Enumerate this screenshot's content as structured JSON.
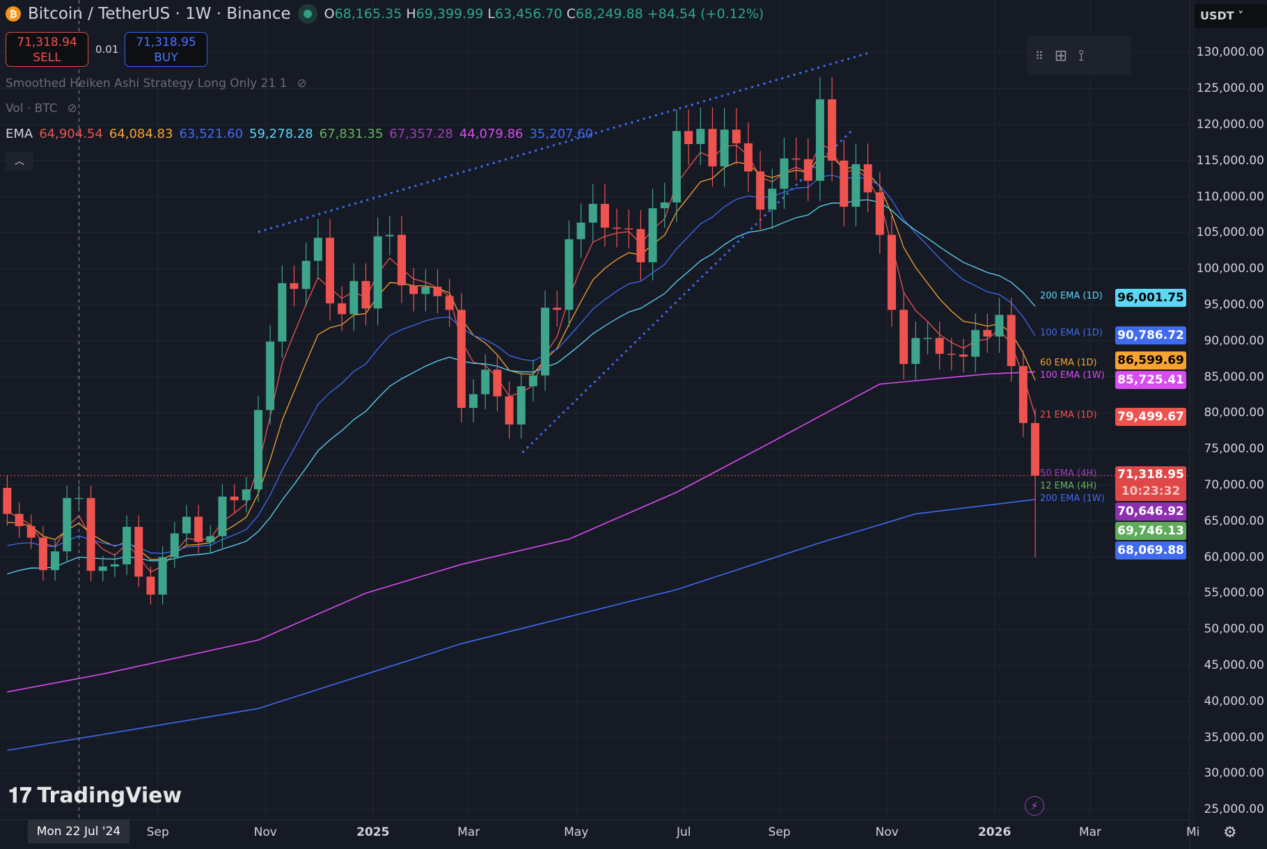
{
  "header": {
    "symbol": "Bitcoin / TetherUS · 1W · Binance",
    "open_label": "O",
    "open": "68,165.35",
    "high_label": "H",
    "high": "69,399.99",
    "low_label": "L",
    "low": "63,456.70",
    "close_label": "C",
    "close": "68,249.88",
    "change": "+84.54 (+0.12%)"
  },
  "trade": {
    "sell_price": "71,318.94",
    "sell_label": "SELL",
    "qty": "0.01",
    "buy_price": "71,318.95",
    "buy_label": "BUY"
  },
  "indicators": {
    "strategy": "Smoothed Heiken Ashi Strategy Long Only 21 1",
    "volume": "Vol · BTC",
    "ema_label": "EMA",
    "ema_values": [
      {
        "v": "64,904.54",
        "c": "#ef5350"
      },
      {
        "v": "64,084.83",
        "c": "#f7a331"
      },
      {
        "v": "63,521.60",
        "c": "#3f6bf0"
      },
      {
        "v": "59,278.28",
        "c": "#5ad8f5"
      },
      {
        "v": "67,831.35",
        "c": "#66b45a"
      },
      {
        "v": "67,357.28",
        "c": "#9c3fb5"
      },
      {
        "v": "44,079.86",
        "c": "#d84cf0"
      },
      {
        "v": "35,207.60",
        "c": "#3f6bf0"
      }
    ]
  },
  "currency": "USDT",
  "price_axis": [
    "130,000.00",
    "125,000.00",
    "120,000.00",
    "115,000.00",
    "110,000.00",
    "105,000.00",
    "100,000.00",
    "95,000.00",
    "90,000.00",
    "85,000.00",
    "80,000.00",
    "75,000.00",
    "70,000.00",
    "65,000.00",
    "60,000.00",
    "55,000.00",
    "50,000.00",
    "45,000.00",
    "40,000.00",
    "35,000.00",
    "30,000.00",
    "25,000.00"
  ],
  "price_labels": [
    {
      "text": "96,001.75",
      "price": 96001.75,
      "bg": "#5ad8f5",
      "fg": "#000"
    },
    {
      "text": "90,786.72",
      "price": 90786.72,
      "bg": "#3f6bf0",
      "fg": "#fff"
    },
    {
      "text": "86,599.69",
      "price": 87300,
      "bg": "#f7a331",
      "fg": "#000"
    },
    {
      "text": "85,725.41",
      "price": 85725.41,
      "bg": "#d84cf0",
      "fg": "#fff"
    },
    {
      "text": "79,499.67",
      "price": 79499.67,
      "bg": "#ef5350",
      "fg": "#fff"
    },
    {
      "text": "70,646.92",
      "price": 68300,
      "bg": "#8e2fb0",
      "fg": "#fff"
    },
    {
      "text": "69,746.13",
      "price": 65800,
      "bg": "#5fab5a",
      "fg": "#fff"
    },
    {
      "text": "68,069.88",
      "price": 63300,
      "bg": "#3f6bf0",
      "fg": "#fff"
    }
  ],
  "last_price": {
    "price_value": 71318.95,
    "price": "71,318.95",
    "countdown": "10:23:32"
  },
  "ema_tags": [
    {
      "text": "200 EMA (1D)",
      "price": 96200,
      "c": "#5ad8f5"
    },
    {
      "text": "100 EMA (1D)",
      "price": 91000,
      "c": "#3f6bf0"
    },
    {
      "text": "60 EMA (1D)",
      "price": 86900,
      "c": "#f7a331"
    },
    {
      "text": "100 EMA (1W)",
      "price": 86000,
      "c": "#d84cf0"
    },
    {
      "text": "21 EMA (1D)",
      "price": 79700,
      "c": "#ef5350"
    },
    {
      "text": "50 EMA (4H)",
      "price": 71500,
      "c": "#9c3fb5"
    },
    {
      "text": "12 EMA (4H)",
      "price": 70600,
      "c": "#66b45a"
    },
    {
      "text": "200 EMA (1W)",
      "price": 69000,
      "c": "#3f6bf0"
    }
  ],
  "time_axis": [
    {
      "t": "Sep",
      "w": 12.6
    },
    {
      "t": "Nov",
      "w": 21.6
    },
    {
      "t": "2025",
      "w": 30.6,
      "bold": true
    },
    {
      "t": "Mar",
      "w": 38.6
    },
    {
      "t": "May",
      "w": 47.6
    },
    {
      "t": "Jul",
      "w": 56.6
    },
    {
      "t": "Sep",
      "w": 64.6
    },
    {
      "t": "Nov",
      "w": 73.6
    },
    {
      "t": "2026",
      "w": 82.6,
      "bold": true
    },
    {
      "t": "Mar",
      "w": 90.6
    },
    {
      "t": "Mi",
      "w": 99.2
    }
  ],
  "crosshair_date": "Mon 22 Jul '24",
  "crosshair_week": 6,
  "brand": "TradingView",
  "chart_data": {
    "type": "candlestick",
    "first_open": 69600,
    "closes": [
      66000,
      64300,
      62700,
      58200,
      60800,
      68200,
      68200,
      58100,
      58700,
      59000,
      64200,
      57300,
      54800,
      60000,
      63300,
      65600,
      62100,
      62900,
      68400,
      67900,
      69400,
      80400,
      89900,
      98000,
      97200,
      101100,
      104300,
      95200,
      93700,
      98300,
      94500,
      104500,
      104700,
      97700,
      96500,
      97500,
      96200,
      94300,
      80700,
      82600,
      86000,
      82300,
      78400,
      83700,
      85200,
      94600,
      94300,
      104100,
      106400,
      109000,
      105700,
      105600,
      105500,
      100900,
      108400,
      109200,
      119100,
      117300,
      119400,
      114200,
      119300,
      117400,
      113500,
      108200,
      111100,
      115300,
      115200,
      112200,
      123500,
      115000,
      108600,
      114500,
      110600,
      104700,
      94300,
      86800,
      90400,
      90400,
      88200,
      88100,
      87800,
      91500,
      90600,
      93600,
      86500,
      78600,
      71300
    ],
    "last_low": 60000,
    "short_emas": [
      {
        "period": 4,
        "seed": 66500,
        "color": "#ef5350"
      },
      {
        "period": 8,
        "seed": 64500,
        "color": "#f7a331"
      },
      {
        "period": 16,
        "seed": 61000,
        "color": "#3f6bf0"
      },
      {
        "period": 26,
        "seed": 57000,
        "color": "#5ad8f5"
      }
    ],
    "long_emas": [
      {
        "color": "#d84cf0",
        "points": [
          [
            0,
            41300
          ],
          [
            8,
            43800
          ],
          [
            21,
            48500
          ],
          [
            30,
            55000
          ],
          [
            38,
            59000
          ],
          [
            47,
            62500
          ],
          [
            56,
            69000
          ],
          [
            64,
            76000
          ],
          [
            73,
            84000
          ],
          [
            82,
            85400
          ],
          [
            86,
            85700
          ]
        ]
      },
      {
        "color": "#3f6bf0",
        "points": [
          [
            0,
            33200
          ],
          [
            12,
            36500
          ],
          [
            21,
            39000
          ],
          [
            38,
            48000
          ],
          [
            56,
            55500
          ],
          [
            68,
            62000
          ],
          [
            76,
            66000
          ],
          [
            86,
            68000
          ]
        ]
      }
    ],
    "trendlines": [
      {
        "from": [
          21,
          105100
        ],
        "to": [
          72,
          129900
        ]
      },
      {
        "from": [
          43.1,
          74500
        ],
        "to": [
          70.8,
          119400
        ]
      }
    ]
  }
}
